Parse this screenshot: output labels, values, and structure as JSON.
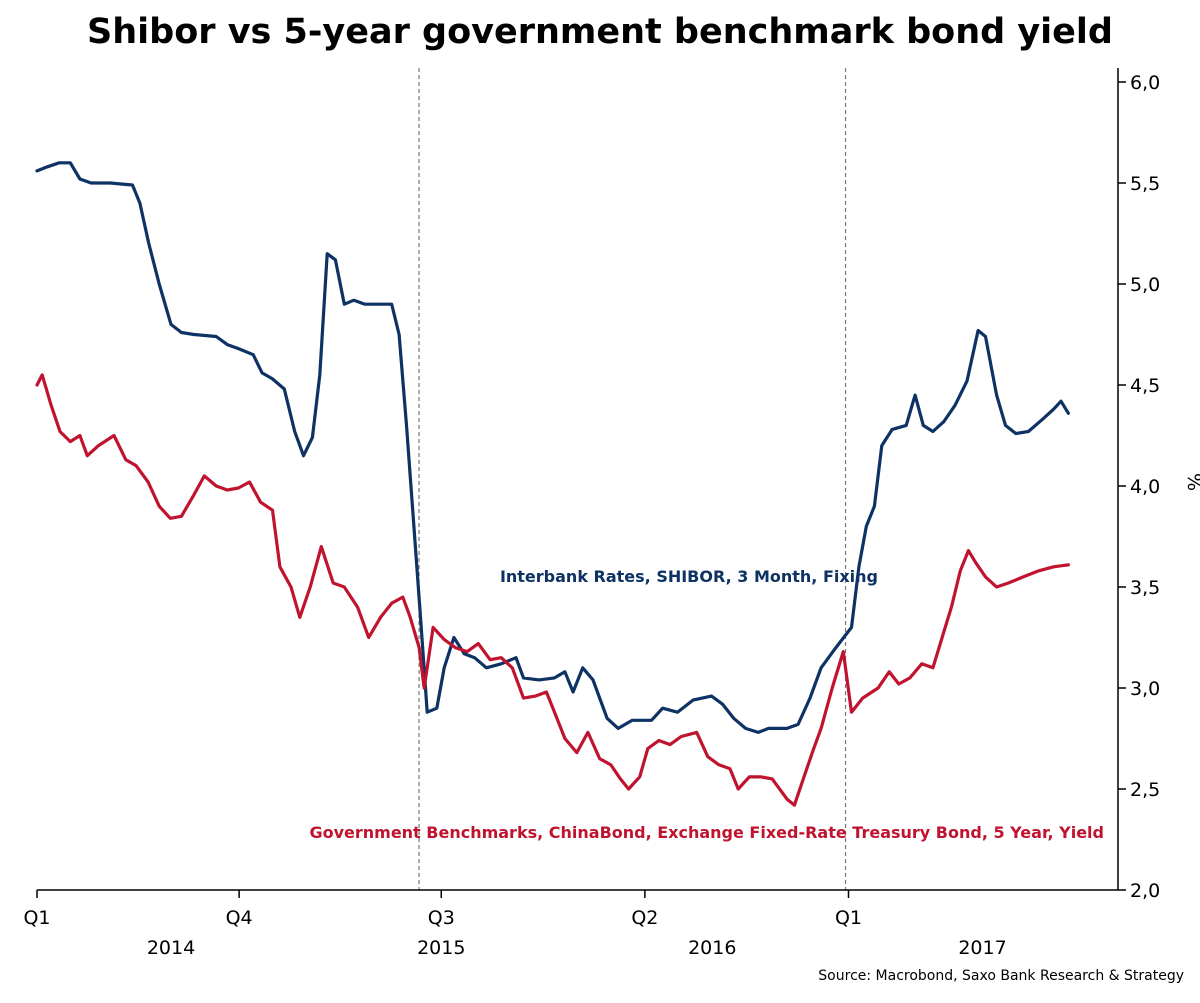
{
  "title": "Shibor vs 5-year government benchmark bond yield",
  "source": "Source: Macrobond, Saxo Bank Research & Strategy",
  "chart_data": {
    "type": "line",
    "title": "Shibor vs 5-year government benchmark bond yield",
    "ylabel": "%",
    "ylim": [
      2.0,
      6.0
    ],
    "y_ticks": [
      "2,0",
      "2,5",
      "3,0",
      "3,5",
      "4,0",
      "4,5",
      "5,0",
      "5,5",
      "6,0"
    ],
    "y_axis_side": "right",
    "x_range": [
      "2014-01-01",
      "2017-12-31"
    ],
    "x_ticks": [
      {
        "date": "2014-01-01",
        "label": "Q1"
      },
      {
        "date": "2014-10-01",
        "label": "Q4"
      },
      {
        "date": "2015-07-01",
        "label": "Q3"
      },
      {
        "date": "2016-04-01",
        "label": "Q2"
      },
      {
        "date": "2017-01-01",
        "label": "Q1"
      }
    ],
    "year_labels": [
      {
        "date": "2014-07-01",
        "label": "2014"
      },
      {
        "date": "2015-07-01",
        "label": "2015"
      },
      {
        "date": "2016-07-01",
        "label": "2016"
      },
      {
        "date": "2017-07-01",
        "label": "2017"
      }
    ],
    "vlines": [
      "2015-06-01",
      "2016-12-28"
    ],
    "grid": false,
    "series": [
      {
        "name": "Interbank Rates, SHIBOR, 3 Month, Fixing",
        "color": "#0d3263",
        "points": [
          [
            "2014-01-01",
            5.56
          ],
          [
            "2014-01-15",
            5.58
          ],
          [
            "2014-01-31",
            5.6
          ],
          [
            "2014-02-15",
            5.6
          ],
          [
            "2014-02-28",
            5.52
          ],
          [
            "2014-03-15",
            5.5
          ],
          [
            "2014-04-10",
            5.5
          ],
          [
            "2014-05-10",
            5.49
          ],
          [
            "2014-05-20",
            5.4
          ],
          [
            "2014-06-01",
            5.2
          ],
          [
            "2014-06-15",
            5.0
          ],
          [
            "2014-07-01",
            4.8
          ],
          [
            "2014-07-15",
            4.76
          ],
          [
            "2014-08-01",
            4.75
          ],
          [
            "2014-08-31",
            4.74
          ],
          [
            "2014-09-15",
            4.7
          ],
          [
            "2014-09-30",
            4.68
          ],
          [
            "2014-10-20",
            4.65
          ],
          [
            "2014-11-01",
            4.56
          ],
          [
            "2014-11-15",
            4.53
          ],
          [
            "2014-12-01",
            4.48
          ],
          [
            "2014-12-15",
            4.27
          ],
          [
            "2014-12-27",
            4.15
          ],
          [
            "2015-01-08",
            4.24
          ],
          [
            "2015-01-18",
            4.55
          ],
          [
            "2015-01-28",
            5.15
          ],
          [
            "2015-02-08",
            5.12
          ],
          [
            "2015-02-20",
            4.9
          ],
          [
            "2015-03-05",
            4.92
          ],
          [
            "2015-03-20",
            4.9
          ],
          [
            "2015-04-05",
            4.9
          ],
          [
            "2015-04-25",
            4.9
          ],
          [
            "2015-05-05",
            4.75
          ],
          [
            "2015-05-15",
            4.3
          ],
          [
            "2015-05-25",
            3.8
          ],
          [
            "2015-06-03",
            3.35
          ],
          [
            "2015-06-12",
            2.88
          ],
          [
            "2015-06-25",
            2.9
          ],
          [
            "2015-07-05",
            3.1
          ],
          [
            "2015-07-18",
            3.25
          ],
          [
            "2015-08-01",
            3.17
          ],
          [
            "2015-08-15",
            3.15
          ],
          [
            "2015-08-31",
            3.1
          ],
          [
            "2015-09-20",
            3.12
          ],
          [
            "2015-10-10",
            3.15
          ],
          [
            "2015-10-20",
            3.05
          ],
          [
            "2015-11-10",
            3.04
          ],
          [
            "2015-12-01",
            3.05
          ],
          [
            "2015-12-15",
            3.08
          ],
          [
            "2015-12-26",
            2.98
          ],
          [
            "2016-01-08",
            3.1
          ],
          [
            "2016-01-22",
            3.04
          ],
          [
            "2016-02-10",
            2.85
          ],
          [
            "2016-02-25",
            2.8
          ],
          [
            "2016-03-15",
            2.84
          ],
          [
            "2016-04-10",
            2.84
          ],
          [
            "2016-04-25",
            2.9
          ],
          [
            "2016-05-15",
            2.88
          ],
          [
            "2016-06-05",
            2.94
          ],
          [
            "2016-06-30",
            2.96
          ],
          [
            "2016-07-15",
            2.92
          ],
          [
            "2016-07-30",
            2.85
          ],
          [
            "2016-08-15",
            2.8
          ],
          [
            "2016-09-01",
            2.78
          ],
          [
            "2016-09-15",
            2.8
          ],
          [
            "2016-10-10",
            2.8
          ],
          [
            "2016-10-25",
            2.82
          ],
          [
            "2016-11-10",
            2.95
          ],
          [
            "2016-11-25",
            3.1
          ],
          [
            "2016-12-15",
            3.2
          ],
          [
            "2017-01-05",
            3.3
          ],
          [
            "2017-01-15",
            3.6
          ],
          [
            "2017-01-25",
            3.8
          ],
          [
            "2017-02-05",
            3.9
          ],
          [
            "2017-02-15",
            4.2
          ],
          [
            "2017-03-01",
            4.28
          ],
          [
            "2017-03-20",
            4.3
          ],
          [
            "2017-04-01",
            4.45
          ],
          [
            "2017-04-12",
            4.3
          ],
          [
            "2017-04-25",
            4.27
          ],
          [
            "2017-05-10",
            4.32
          ],
          [
            "2017-05-25",
            4.4
          ],
          [
            "2017-06-10",
            4.52
          ],
          [
            "2017-06-25",
            4.77
          ],
          [
            "2017-07-05",
            4.74
          ],
          [
            "2017-07-20",
            4.45
          ],
          [
            "2017-08-01",
            4.3
          ],
          [
            "2017-08-15",
            4.26
          ],
          [
            "2017-09-01",
            4.27
          ],
          [
            "2017-09-20",
            4.33
          ],
          [
            "2017-10-05",
            4.38
          ],
          [
            "2017-10-15",
            4.42
          ],
          [
            "2017-10-25",
            4.36
          ]
        ]
      },
      {
        "name": "Government Benchmarks, ChinaBond, Exchange Fixed-Rate Treasury Bond, 5 Year, Yield",
        "color": "#c0132f",
        "points": [
          [
            "2014-01-01",
            4.5
          ],
          [
            "2014-01-08",
            4.55
          ],
          [
            "2014-01-20",
            4.4
          ],
          [
            "2014-02-01",
            4.27
          ],
          [
            "2014-02-15",
            4.22
          ],
          [
            "2014-02-28",
            4.25
          ],
          [
            "2014-03-10",
            4.15
          ],
          [
            "2014-03-25",
            4.2
          ],
          [
            "2014-04-15",
            4.25
          ],
          [
            "2014-05-01",
            4.13
          ],
          [
            "2014-05-15",
            4.1
          ],
          [
            "2014-05-31",
            4.02
          ],
          [
            "2014-06-15",
            3.9
          ],
          [
            "2014-06-30",
            3.84
          ],
          [
            "2014-07-15",
            3.85
          ],
          [
            "2014-07-31",
            3.95
          ],
          [
            "2014-08-15",
            4.05
          ],
          [
            "2014-08-31",
            4.0
          ],
          [
            "2014-09-15",
            3.98
          ],
          [
            "2014-09-30",
            3.99
          ],
          [
            "2014-10-15",
            4.02
          ],
          [
            "2014-10-30",
            3.92
          ],
          [
            "2014-11-15",
            3.88
          ],
          [
            "2014-11-25",
            3.6
          ],
          [
            "2014-12-10",
            3.5
          ],
          [
            "2014-12-22",
            3.35
          ],
          [
            "2015-01-05",
            3.5
          ],
          [
            "2015-01-20",
            3.7
          ],
          [
            "2015-02-05",
            3.52
          ],
          [
            "2015-02-20",
            3.5
          ],
          [
            "2015-03-10",
            3.4
          ],
          [
            "2015-03-25",
            3.25
          ],
          [
            "2015-04-10",
            3.35
          ],
          [
            "2015-04-25",
            3.42
          ],
          [
            "2015-05-10",
            3.45
          ],
          [
            "2015-05-20",
            3.35
          ],
          [
            "2015-06-01",
            3.2
          ],
          [
            "2015-06-08",
            3.0
          ],
          [
            "2015-06-20",
            3.3
          ],
          [
            "2015-07-05",
            3.24
          ],
          [
            "2015-07-20",
            3.2
          ],
          [
            "2015-08-05",
            3.18
          ],
          [
            "2015-08-20",
            3.22
          ],
          [
            "2015-09-05",
            3.14
          ],
          [
            "2015-09-20",
            3.15
          ],
          [
            "2015-10-05",
            3.1
          ],
          [
            "2015-10-20",
            2.95
          ],
          [
            "2015-11-05",
            2.96
          ],
          [
            "2015-11-20",
            2.98
          ],
          [
            "2015-12-01",
            2.88
          ],
          [
            "2015-12-15",
            2.75
          ],
          [
            "2015-12-31",
            2.68
          ],
          [
            "2016-01-15",
            2.78
          ],
          [
            "2016-01-31",
            2.65
          ],
          [
            "2016-02-15",
            2.62
          ],
          [
            "2016-02-28",
            2.55
          ],
          [
            "2016-03-10",
            2.5
          ],
          [
            "2016-03-25",
            2.56
          ],
          [
            "2016-04-05",
            2.7
          ],
          [
            "2016-04-20",
            2.74
          ],
          [
            "2016-05-05",
            2.72
          ],
          [
            "2016-05-20",
            2.76
          ],
          [
            "2016-06-10",
            2.78
          ],
          [
            "2016-06-25",
            2.66
          ],
          [
            "2016-07-10",
            2.62
          ],
          [
            "2016-07-25",
            2.6
          ],
          [
            "2016-08-05",
            2.5
          ],
          [
            "2016-08-20",
            2.56
          ],
          [
            "2016-09-05",
            2.56
          ],
          [
            "2016-09-20",
            2.55
          ],
          [
            "2016-10-10",
            2.45
          ],
          [
            "2016-10-20",
            2.42
          ],
          [
            "2016-11-01",
            2.55
          ],
          [
            "2016-11-15",
            2.7
          ],
          [
            "2016-11-25",
            2.8
          ],
          [
            "2016-12-10",
            3.0
          ],
          [
            "2016-12-25",
            3.18
          ],
          [
            "2017-01-05",
            2.88
          ],
          [
            "2017-01-20",
            2.95
          ],
          [
            "2017-02-10",
            3.0
          ],
          [
            "2017-02-25",
            3.08
          ],
          [
            "2017-03-10",
            3.02
          ],
          [
            "2017-03-25",
            3.05
          ],
          [
            "2017-04-10",
            3.12
          ],
          [
            "2017-04-25",
            3.1
          ],
          [
            "2017-05-10",
            3.28
          ],
          [
            "2017-05-20",
            3.4
          ],
          [
            "2017-06-01",
            3.58
          ],
          [
            "2017-06-12",
            3.68
          ],
          [
            "2017-06-22",
            3.62
          ],
          [
            "2017-07-05",
            3.55
          ],
          [
            "2017-07-20",
            3.5
          ],
          [
            "2017-08-05",
            3.52
          ],
          [
            "2017-08-25",
            3.55
          ],
          [
            "2017-09-15",
            3.58
          ],
          [
            "2017-10-05",
            3.6
          ],
          [
            "2017-10-25",
            3.61
          ]
        ]
      }
    ]
  }
}
